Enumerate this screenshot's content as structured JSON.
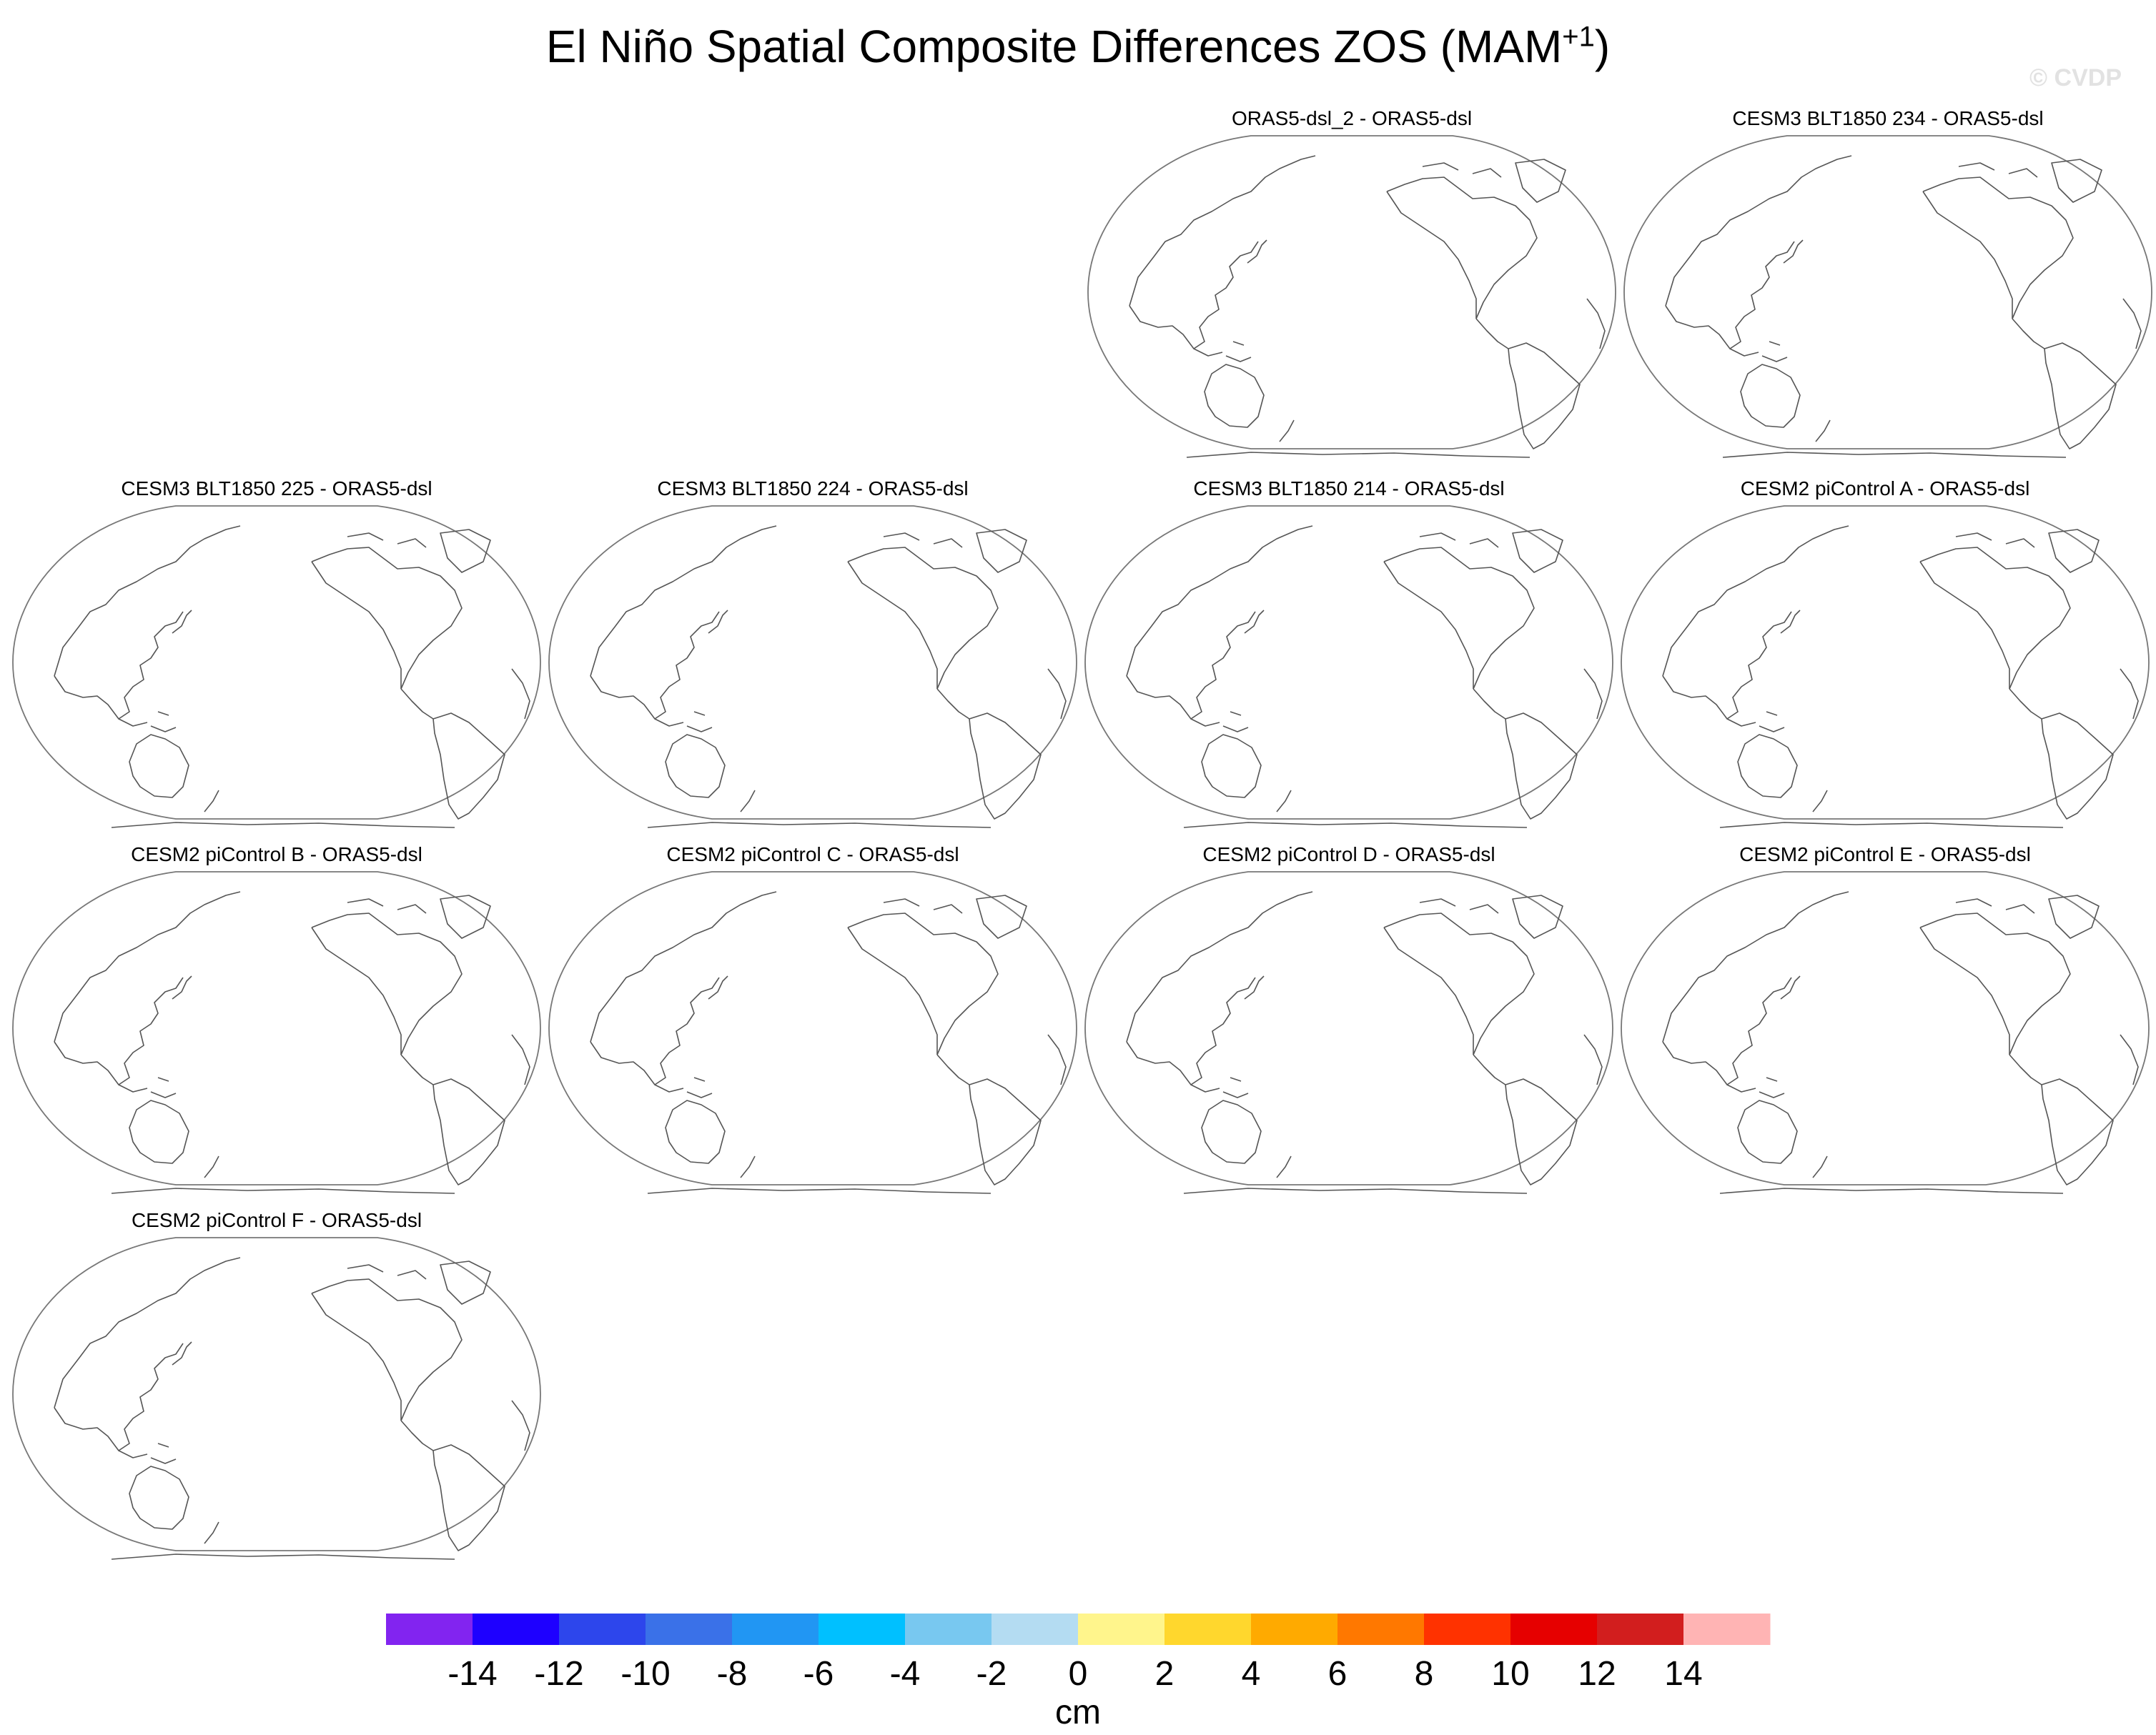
{
  "header": {
    "title_main": "El Niño Spatial Composite Differences ZOS (MAM",
    "title_sup": "+1",
    "title_close": ")",
    "watermark": "© CVDP"
  },
  "chart_data": {
    "type": "heatmap",
    "title": "El Niño Spatial Composite Differences ZOS (MAM+1)",
    "variable": "ZOS",
    "season": "MAM+1",
    "units": "cm",
    "panels": [
      {
        "label": "ORAS5-dsl_2 - ORAS5-dsl",
        "data": "no shaded values"
      },
      {
        "label": "CESM3 BLT1850 234 - ORAS5-dsl",
        "data": "no shaded values"
      },
      {
        "label": "CESM3 BLT1850 225 - ORAS5-dsl",
        "data": "no shaded values"
      },
      {
        "label": "CESM3 BLT1850 224 - ORAS5-dsl",
        "data": "no shaded values"
      },
      {
        "label": "CESM3 BLT1850 214 - ORAS5-dsl",
        "data": "no shaded values"
      },
      {
        "label": "CESM2 piControl A - ORAS5-dsl",
        "data": "no shaded values"
      },
      {
        "label": "CESM2 piControl B - ORAS5-dsl",
        "data": "no shaded values"
      },
      {
        "label": "CESM2 piControl C - ORAS5-dsl",
        "data": "no shaded values"
      },
      {
        "label": "CESM2 piControl D - ORAS5-dsl",
        "data": "no shaded values"
      },
      {
        "label": "CESM2 piControl E - ORAS5-dsl",
        "data": "no shaded values"
      },
      {
        "label": "CESM2 piControl F - ORAS5-dsl",
        "data": "no shaded values"
      }
    ],
    "colorbar": {
      "label": "cm",
      "ticks": [
        "-14",
        "-12",
        "-10",
        "-8",
        "-6",
        "-4",
        "-2",
        "0",
        "2",
        "4",
        "6",
        "8",
        "10",
        "12",
        "14"
      ],
      "colors": [
        "#8224f0",
        "#1e00ff",
        "#2d46ec",
        "#3a71e8",
        "#2196f3",
        "#00c0ff",
        "#78c8f0",
        "#b4dcf2",
        "#fff58c",
        "#ffd72d",
        "#ffaa00",
        "#ff7800",
        "#ff3200",
        "#e60000",
        "#d21e1e",
        "#ffb4b4"
      ]
    }
  }
}
